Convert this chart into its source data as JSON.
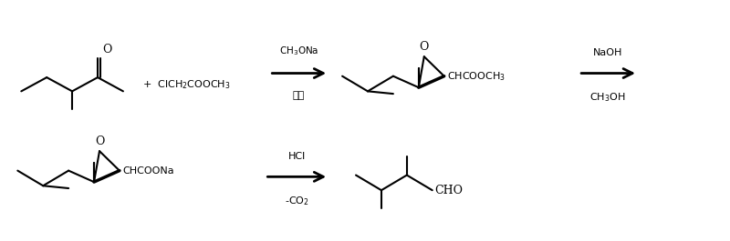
{
  "bg_color": "#ffffff",
  "line_color": "#000000",
  "text_color": "#000000",
  "reagent1_above": "CH$_3$ONa",
  "reagent1_below": "甲苯",
  "reagent2_above": "NaOH",
  "reagent2_below": "CH$_3$OH",
  "reagent3_above": "HCl",
  "reagent3_below": "-CO$_2$",
  "plus_text": "+  ClCH$_2$COOCH$_3$",
  "epoxide1_text": "CHCOOCH$_3$",
  "epoxide2_text": "CHCOONa",
  "aldehyde_text": "CHO"
}
